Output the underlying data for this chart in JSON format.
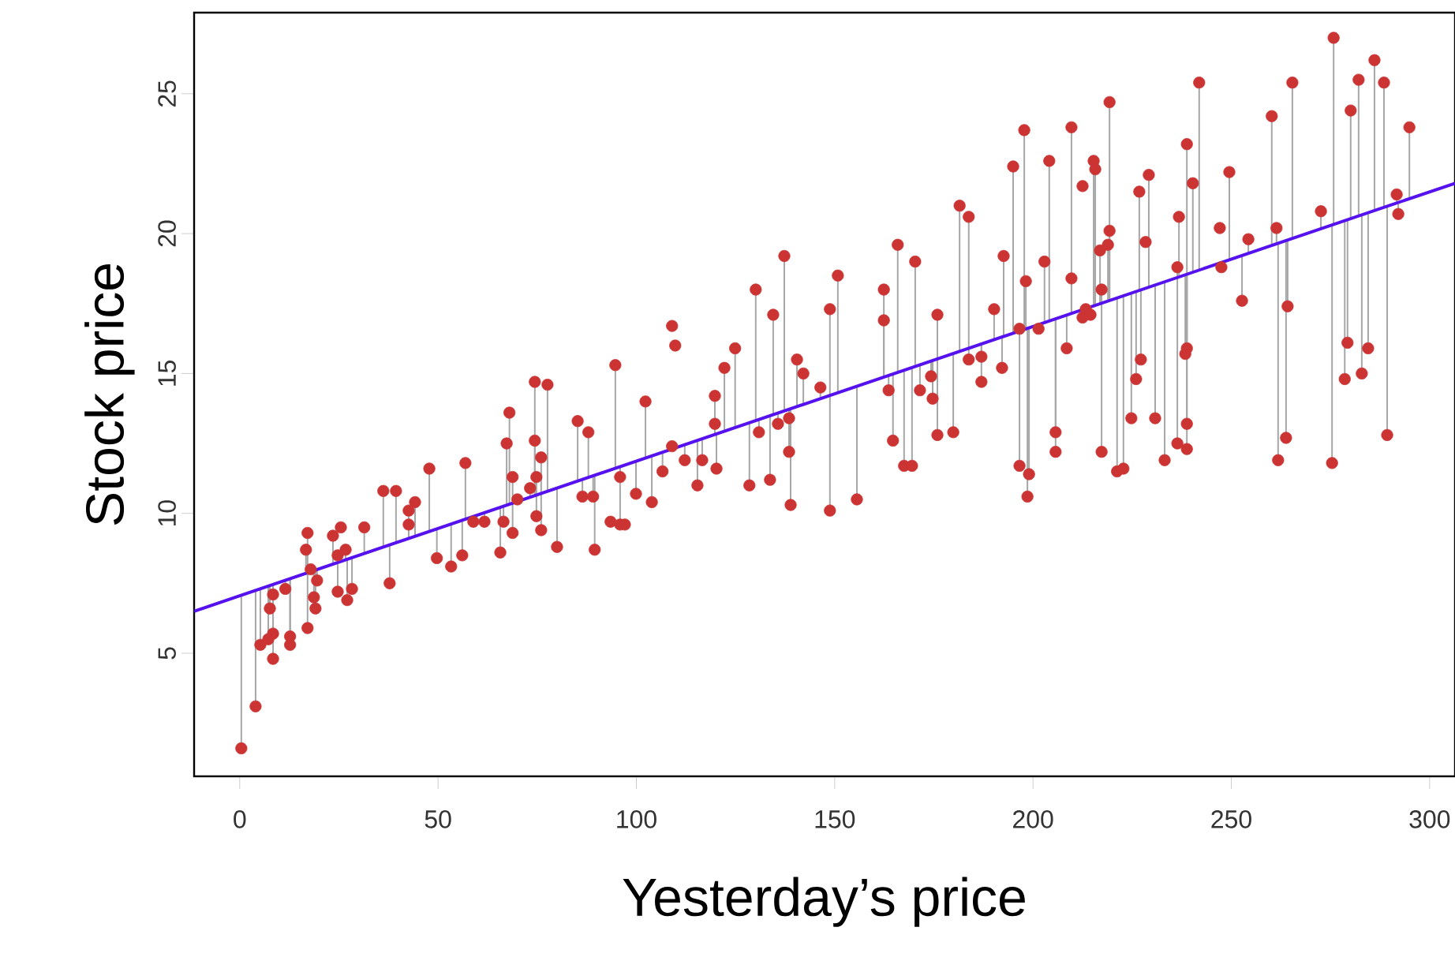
{
  "chart_data": {
    "type": "scatter",
    "xlabel": "Yesterday’s price",
    "ylabel": "Stock price",
    "xlim": [
      -11.5,
      306.4
    ],
    "ylim": [
      0.6,
      27.9
    ],
    "xticks": [
      0,
      50,
      100,
      150,
      200,
      250,
      300
    ],
    "yticks": [
      5,
      10,
      15,
      20,
      25
    ],
    "line_style": "solid",
    "series": [
      {
        "type": "scatter",
        "marker": "circle",
        "color": "#cc3333",
        "errors": [
          [
            1.6,
            7.1
          ],
          [
            3.1,
            7.2
          ],
          [
            5.3,
            7.3
          ],
          [
            5.5,
            7.4
          ],
          [
            5.7,
            7.5
          ],
          [
            4.8,
            7.5
          ],
          [
            6.6,
            7.4
          ],
          [
            7.1,
            7.5
          ],
          [
            7.3,
            7.6
          ],
          [
            5.6,
            7.7
          ],
          [
            5.3,
            7.7
          ],
          [
            5.9,
            7.9
          ],
          [
            7.9,
            9.3
          ],
          [
            7.9,
            8.7
          ],
          [
            7.9,
            8.0
          ],
          [
            7.6,
            8.0
          ],
          [
            7.0,
            8.0
          ],
          [
            6.6,
            8.0
          ],
          [
            8.2,
            9.2
          ],
          null,
          [
            8.2,
            8.5
          ],
          [
            8.3,
            8.7
          ],
          [
            7.2,
            8.2
          ],
          [
            6.9,
            8.4
          ],
          [
            7.3,
            8.4
          ],
          [
            8.6,
            9.5
          ],
          [
            8.8,
            10.8
          ],
          [
            8.9,
            10.8
          ],
          [
            7.5,
            8.9
          ],
          [
            9.1,
            9.6
          ],
          [
            9.1,
            10.1
          ],
          [
            9.2,
            10.4
          ],
          [
            9.4,
            11.6
          ],
          [
            8.4,
            9.4
          ],
          [
            8.1,
            9.6
          ],
          [
            8.5,
            9.8
          ],
          [
            9.8,
            11.8
          ],
          null,
          [
            9.7,
            10.0
          ],
          [
            8.6,
            10.2
          ],
          [
            9.7,
            10.3
          ],
          [
            10.3,
            13.6
          ],
          [
            10.3,
            12.5
          ],
          [
            10.4,
            11.3
          ],
          [
            9.3,
            10.4
          ],
          [
            10.4,
            10.5
          ],
          [
            10.6,
            10.9
          ],
          [
            10.6,
            12.6
          ],
          [
            10.7,
            11.3
          ],
          [
            10.7,
            12.0
          ],
          [
            9.9,
            10.7
          ],
          [
            9.4,
            10.7
          ],
          [
            8.8,
            10.9
          ],
          [
            11.2,
            13.3
          ],
          [
            11.3,
            12.9
          ],
          [
            10.6,
            11.2
          ],
          [
            10.6,
            11.3
          ],
          [
            8.7,
            11.4
          ],
          null,
          [
            10.6,
            14.7
          ],
          [
            10.8,
            14.6
          ],
          [
            11.6,
            15.3
          ],
          [
            11.3,
            11.7
          ],
          [
            9.6,
            11.7
          ],
          null,
          [
            10.7,
            11.9
          ],
          [
            12.0,
            14.0
          ],
          [
            10.4,
            12.1
          ],
          [
            11.5,
            12.2
          ],
          null,
          null,
          [
            12.3,
            12.4
          ],
          [
            11.9,
            12.5
          ],
          [
            11.0,
            12.6
          ],
          [
            11.9,
            12.7
          ],
          [
            12.8,
            14.2
          ],
          [
            12.8,
            13.2
          ],
          [
            11.6,
            12.8
          ],
          [
            12.9,
            15.2
          ],
          [
            13.1,
            15.9
          ],
          [
            11.0,
            13.2
          ],
          [
            13.3,
            18.0
          ],
          [
            12.9,
            13.4
          ],
          [
            11.2,
            13.5
          ],
          [
            13.5,
            17.1
          ],
          [
            13.2,
            13.6
          ],
          [
            13.7,
            19.2
          ],
          [
            13.4,
            13.7
          ],
          [
            12.2,
            13.7
          ],
          [
            10.3,
            13.7
          ],
          [
            13.8,
            15.5
          ],
          [
            13.9,
            15.0
          ],
          [
            14.1,
            14.5
          ],
          [
            14.2,
            17.3
          ],
          [
            10.1,
            14.2
          ],
          [
            14.3,
            18.5
          ],
          [
            10.5,
            14.5
          ],
          [
            14.9,
            18.0
          ],
          [
            14.9,
            16.9
          ],
          [
            14.4,
            14.9
          ],
          [
            12.6,
            15.0
          ],
          [
            15.0,
            19.6
          ],
          [
            11.7,
            15.1
          ],
          [
            11.7,
            15.2
          ],
          [
            15.3,
            19.0
          ],
          [
            14.4,
            15.3
          ],
          [
            14.9,
            15.4
          ],
          [
            14.1,
            15.5
          ],
          [
            15.5,
            17.1
          ],
          [
            12.8,
            15.5
          ],
          [
            12.9,
            15.7
          ],
          [
            15.8,
            21.0
          ],
          [
            15.9,
            20.6
          ],
          [
            15.5,
            15.9
          ],
          [
            15.6,
            16.1
          ],
          [
            14.7,
            16.1
          ],
          [
            16.2,
            17.3
          ],
          [
            15.2,
            16.3
          ],
          [
            16.3,
            19.2
          ],
          [
            16.4,
            22.4
          ],
          [
            16.6,
            23.7
          ],
          [
            16.6,
            18.3
          ],
          [
            16.5,
            16.6
          ],
          [
            16.6,
            16.7
          ],
          [
            16.8,
            19.0
          ],
          [
            16.9,
            22.6
          ],
          [
            15.9,
            17.1
          ],
          [
            17.1,
            23.8
          ],
          [
            17.1,
            18.4
          ],
          null,
          null,
          null,
          [
            17.1,
            17.4
          ],
          [
            17.4,
            22.6
          ],
          [
            17.4,
            22.3
          ],
          [
            17.5,
            19.4
          ],
          [
            17.5,
            18.0
          ],
          [
            17.6,
            19.6
          ],
          [
            17.6,
            20.1
          ],
          [
            17.6,
            24.7
          ],
          [
            14.8,
            17.9
          ],
          [
            15.5,
            18.0
          ],
          [
            18.0,
            21.5
          ],
          null,
          [
            18.1,
            22.1
          ],
          [
            18.4,
            18.8
          ],
          [
            18.5,
            20.6
          ],
          [
            18.5,
            23.2
          ],
          [
            18.6,
            21.8
          ],
          [
            15.7,
            18.5
          ],
          [
            15.9,
            18.5
          ],
          [
            18.7,
            25.4
          ],
          null,
          null,
          [
            19.1,
            22.2
          ],
          [
            17.6,
            19.2
          ],
          [
            19.3,
            19.8
          ],
          [
            19.6,
            24.2
          ],
          [
            19.6,
            20.2
          ],
          [
            17.4,
            19.8
          ],
          [
            19.8,
            25.4
          ],
          [
            20.2,
            20.8
          ],
          [
            20.3,
            27.0
          ],
          [
            20.5,
            24.4
          ],
          [
            16.1,
            20.5
          ],
          [
            14.8,
            20.5
          ],
          [
            20.6,
            25.5
          ],
          [
            15.0,
            20.7
          ],
          [
            15.9,
            20.7
          ],
          [
            20.8,
            26.2
          ],
          [
            20.9,
            25.4
          ],
          [
            21.1,
            21.4
          ],
          [
            20.7,
            21.1
          ],
          [
            21.2,
            23.8
          ],
          [
            11.7,
            16.5
          ],
          [
            11.4,
            16.6
          ],
          [
            10.6,
            16.6
          ],
          [
            12.9,
            17.0
          ],
          [
            12.2,
            17.0
          ],
          [
            12.2,
            17.5
          ],
          [
            11.5,
            17.7
          ],
          [
            11.6,
            17.8
          ],
          [
            13.4,
            17.9
          ],
          [
            13.4,
            18.2
          ],
          [
            11.9,
            18.3
          ],
          [
            12.5,
            18.4
          ],
          [
            12.3,
            18.5
          ],
          [
            13.2,
            18.5
          ],
          [
            11.9,
            19.7
          ],
          [
            12.7,
            19.8
          ],
          [
            11.8,
            20.3
          ],
          [
            12.8,
            21.0
          ]
        ],
        "x": [
          0.4,
          4.0,
          5.2,
          7.2,
          8.4,
          8.4,
          7.6,
          8.4,
          11.5,
          12.7,
          12.7,
          17.1,
          17.1,
          16.7,
          17.9,
          19.5,
          18.7,
          19.1,
          23.5,
          25.5,
          24.7,
          26.7,
          24.7,
          27.1,
          28.3,
          31.4,
          36.2,
          39.4,
          37.8,
          42.6,
          42.6,
          44.2,
          47.8,
          49.7,
          53.3,
          56.1,
          56.9,
          58.9,
          61.7,
          65.7,
          66.5,
          68.0,
          67.3,
          68.8,
          68.8,
          70.0,
          73.2,
          74.4,
          74.8,
          76.0,
          74.8,
          76.0,
          80.0,
          85.2,
          87.9,
          86.4,
          89.1,
          89.5,
          93.5,
          74.4,
          77.6,
          94.7,
          95.9,
          95.9,
          97.1,
          99.9,
          102.3,
          103.9,
          106.6,
          109.0,
          109.8,
          109.0,
          112.2,
          115.4,
          116.6,
          119.8,
          119.8,
          120.2,
          122.2,
          124.9,
          128.5,
          130.1,
          130.9,
          133.7,
          134.5,
          135.7,
          137.3,
          138.5,
          138.5,
          138.9,
          140.5,
          142.1,
          146.4,
          148.8,
          148.8,
          150.8,
          155.6,
          162.4,
          162.4,
          163.6,
          164.7,
          165.9,
          167.5,
          169.5,
          170.3,
          171.5,
          174.3,
          174.7,
          175.9,
          175.9,
          179.9,
          181.5,
          183.8,
          183.8,
          187.0,
          187.0,
          190.2,
          192.2,
          192.6,
          195.0,
          197.8,
          198.2,
          196.6,
          201.4,
          202.9,
          204.1,
          208.5,
          209.7,
          209.7,
          212.5,
          213.3,
          212.5,
          214.5,
          215.3,
          215.7,
          216.9,
          217.3,
          218.9,
          219.3,
          219.3,
          226.0,
          227.2,
          226.8,
          228.4,
          229.2,
          236.4,
          236.8,
          238.8,
          240.3,
          238.4,
          238.8,
          241.9,
          247.1,
          247.5,
          249.5,
          252.7,
          254.3,
          260.2,
          261.4,
          264.2,
          265.4,
          272.6,
          275.8,
          280.1,
          279.3,
          278.6,
          282.1,
          282.9,
          284.5,
          286.1,
          288.5,
          291.7,
          292.1,
          294.9,
          196.6,
          199.0,
          198.6,
          205.7,
          205.7,
          217.3,
          221.2,
          222.8,
          224.8,
          230.8,
          233.2,
          236.4,
          238.8,
          238.8,
          261.8,
          263.8,
          275.4,
          289.3
        ],
        "values": [
          1.6,
          3.1,
          5.3,
          5.5,
          5.7,
          4.8,
          6.6,
          7.1,
          7.3,
          5.6,
          5.3,
          5.9,
          9.3,
          8.7,
          8.0,
          7.6,
          7.0,
          6.6,
          9.2,
          9.5,
          8.5,
          8.7,
          7.2,
          6.9,
          7.3,
          9.5,
          10.8,
          10.8,
          7.5,
          9.6,
          10.1,
          10.4,
          11.6,
          8.4,
          8.1,
          8.5,
          11.8,
          9.7,
          9.7,
          8.6,
          9.7,
          13.6,
          12.5,
          11.3,
          9.3,
          10.5,
          10.9,
          12.6,
          11.3,
          12.0,
          9.9,
          9.4,
          8.8,
          13.3,
          12.9,
          10.6,
          10.6,
          8.7,
          9.7,
          14.7,
          14.6,
          15.3,
          11.3,
          9.6,
          9.6,
          10.7,
          14.0,
          10.4,
          11.5,
          16.7,
          16.0,
          12.4,
          11.9,
          11.0,
          11.9,
          14.2,
          13.2,
          11.6,
          15.2,
          15.9,
          11.0,
          18.0,
          12.9,
          11.2,
          17.1,
          13.2,
          19.2,
          13.4,
          12.2,
          10.3,
          15.5,
          15.0,
          14.5,
          17.3,
          10.1,
          18.5,
          10.5,
          18.0,
          16.9,
          14.4,
          12.6,
          19.6,
          11.7,
          11.7,
          19.0,
          14.4,
          14.9,
          14.1,
          17.1,
          12.8,
          12.9,
          21.0,
          20.6,
          15.5,
          15.6,
          14.7,
          17.3,
          15.2,
          19.2,
          22.4,
          23.7,
          18.3,
          16.6,
          16.6,
          19.0,
          22.6,
          15.9,
          23.8,
          18.4,
          21.7,
          17.3,
          17.0,
          17.1,
          22.6,
          22.3,
          19.4,
          18.0,
          19.6,
          20.1,
          24.7,
          14.8,
          15.5,
          21.5,
          19.7,
          22.1,
          18.8,
          20.6,
          23.2,
          21.8,
          15.7,
          15.9,
          25.4,
          20.2,
          18.8,
          22.2,
          17.6,
          19.8,
          24.2,
          20.2,
          17.4,
          25.4,
          20.8,
          27.0,
          24.4,
          16.1,
          14.8,
          25.5,
          15.0,
          15.9,
          26.2,
          25.4,
          21.4,
          20.7,
          23.8,
          11.7,
          11.4,
          10.6,
          12.9,
          12.2,
          12.2,
          11.5,
          11.6,
          13.4,
          13.4,
          11.9,
          12.5,
          12.3,
          13.2,
          11.9,
          12.7,
          11.8,
          12.8
        ]
      },
      {
        "type": "line",
        "marker": "none",
        "color": "#5511ee",
        "x": [
          -11.5,
          306.4
        ],
        "values": [
          6.5,
          21.8
        ]
      }
    ]
  }
}
